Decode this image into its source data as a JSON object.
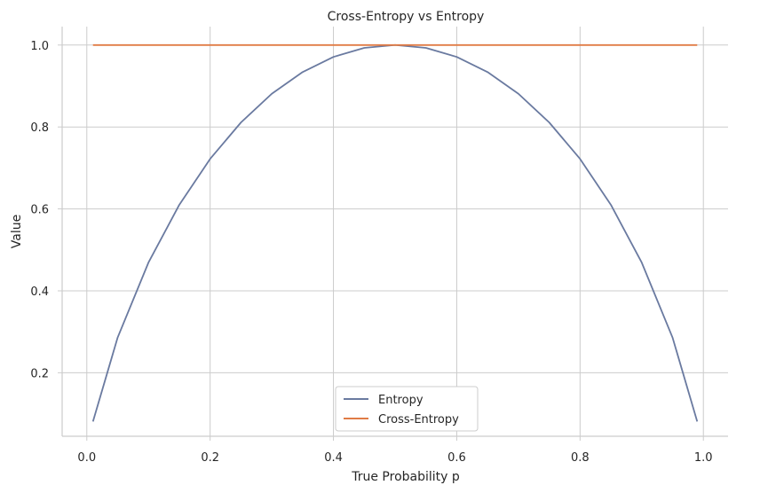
{
  "chart_data": {
    "type": "line",
    "title": "Cross-Entropy vs Entropy",
    "xlabel": "True Probability p",
    "ylabel": "Value",
    "xlim": [
      -0.04,
      1.04
    ],
    "ylim": [
      0.045,
      1.045
    ],
    "xticks": [
      0.0,
      0.2,
      0.4,
      0.6,
      0.8,
      1.0
    ],
    "xtick_labels": [
      "0.0",
      "0.2",
      "0.4",
      "0.6",
      "0.8",
      "1.0"
    ],
    "yticks": [
      0.2,
      0.4,
      0.6,
      0.8,
      1.0
    ],
    "ytick_labels": [
      "0.2",
      "0.4",
      "0.6",
      "0.8",
      "1.0"
    ],
    "grid": true,
    "legend_position": "bottom-center",
    "x": [
      0.01,
      0.05,
      0.1,
      0.15,
      0.2,
      0.25,
      0.3,
      0.35,
      0.4,
      0.45,
      0.5,
      0.55,
      0.6,
      0.65,
      0.7,
      0.75,
      0.8,
      0.85,
      0.9,
      0.95,
      0.99
    ],
    "series": [
      {
        "name": "Entropy",
        "color": "#6a7aa0",
        "values": [
          0.081,
          0.286,
          0.469,
          0.61,
          0.722,
          0.811,
          0.881,
          0.934,
          0.971,
          0.993,
          1.0,
          0.993,
          0.971,
          0.934,
          0.881,
          0.811,
          0.722,
          0.61,
          0.469,
          0.286,
          0.081
        ]
      },
      {
        "name": "Cross-Entropy",
        "color": "#e07b45",
        "values": [
          1.0,
          1.0,
          1.0,
          1.0,
          1.0,
          1.0,
          1.0,
          1.0,
          1.0,
          1.0,
          1.0,
          1.0,
          1.0,
          1.0,
          1.0,
          1.0,
          1.0,
          1.0,
          1.0,
          1.0,
          1.0
        ]
      }
    ]
  }
}
